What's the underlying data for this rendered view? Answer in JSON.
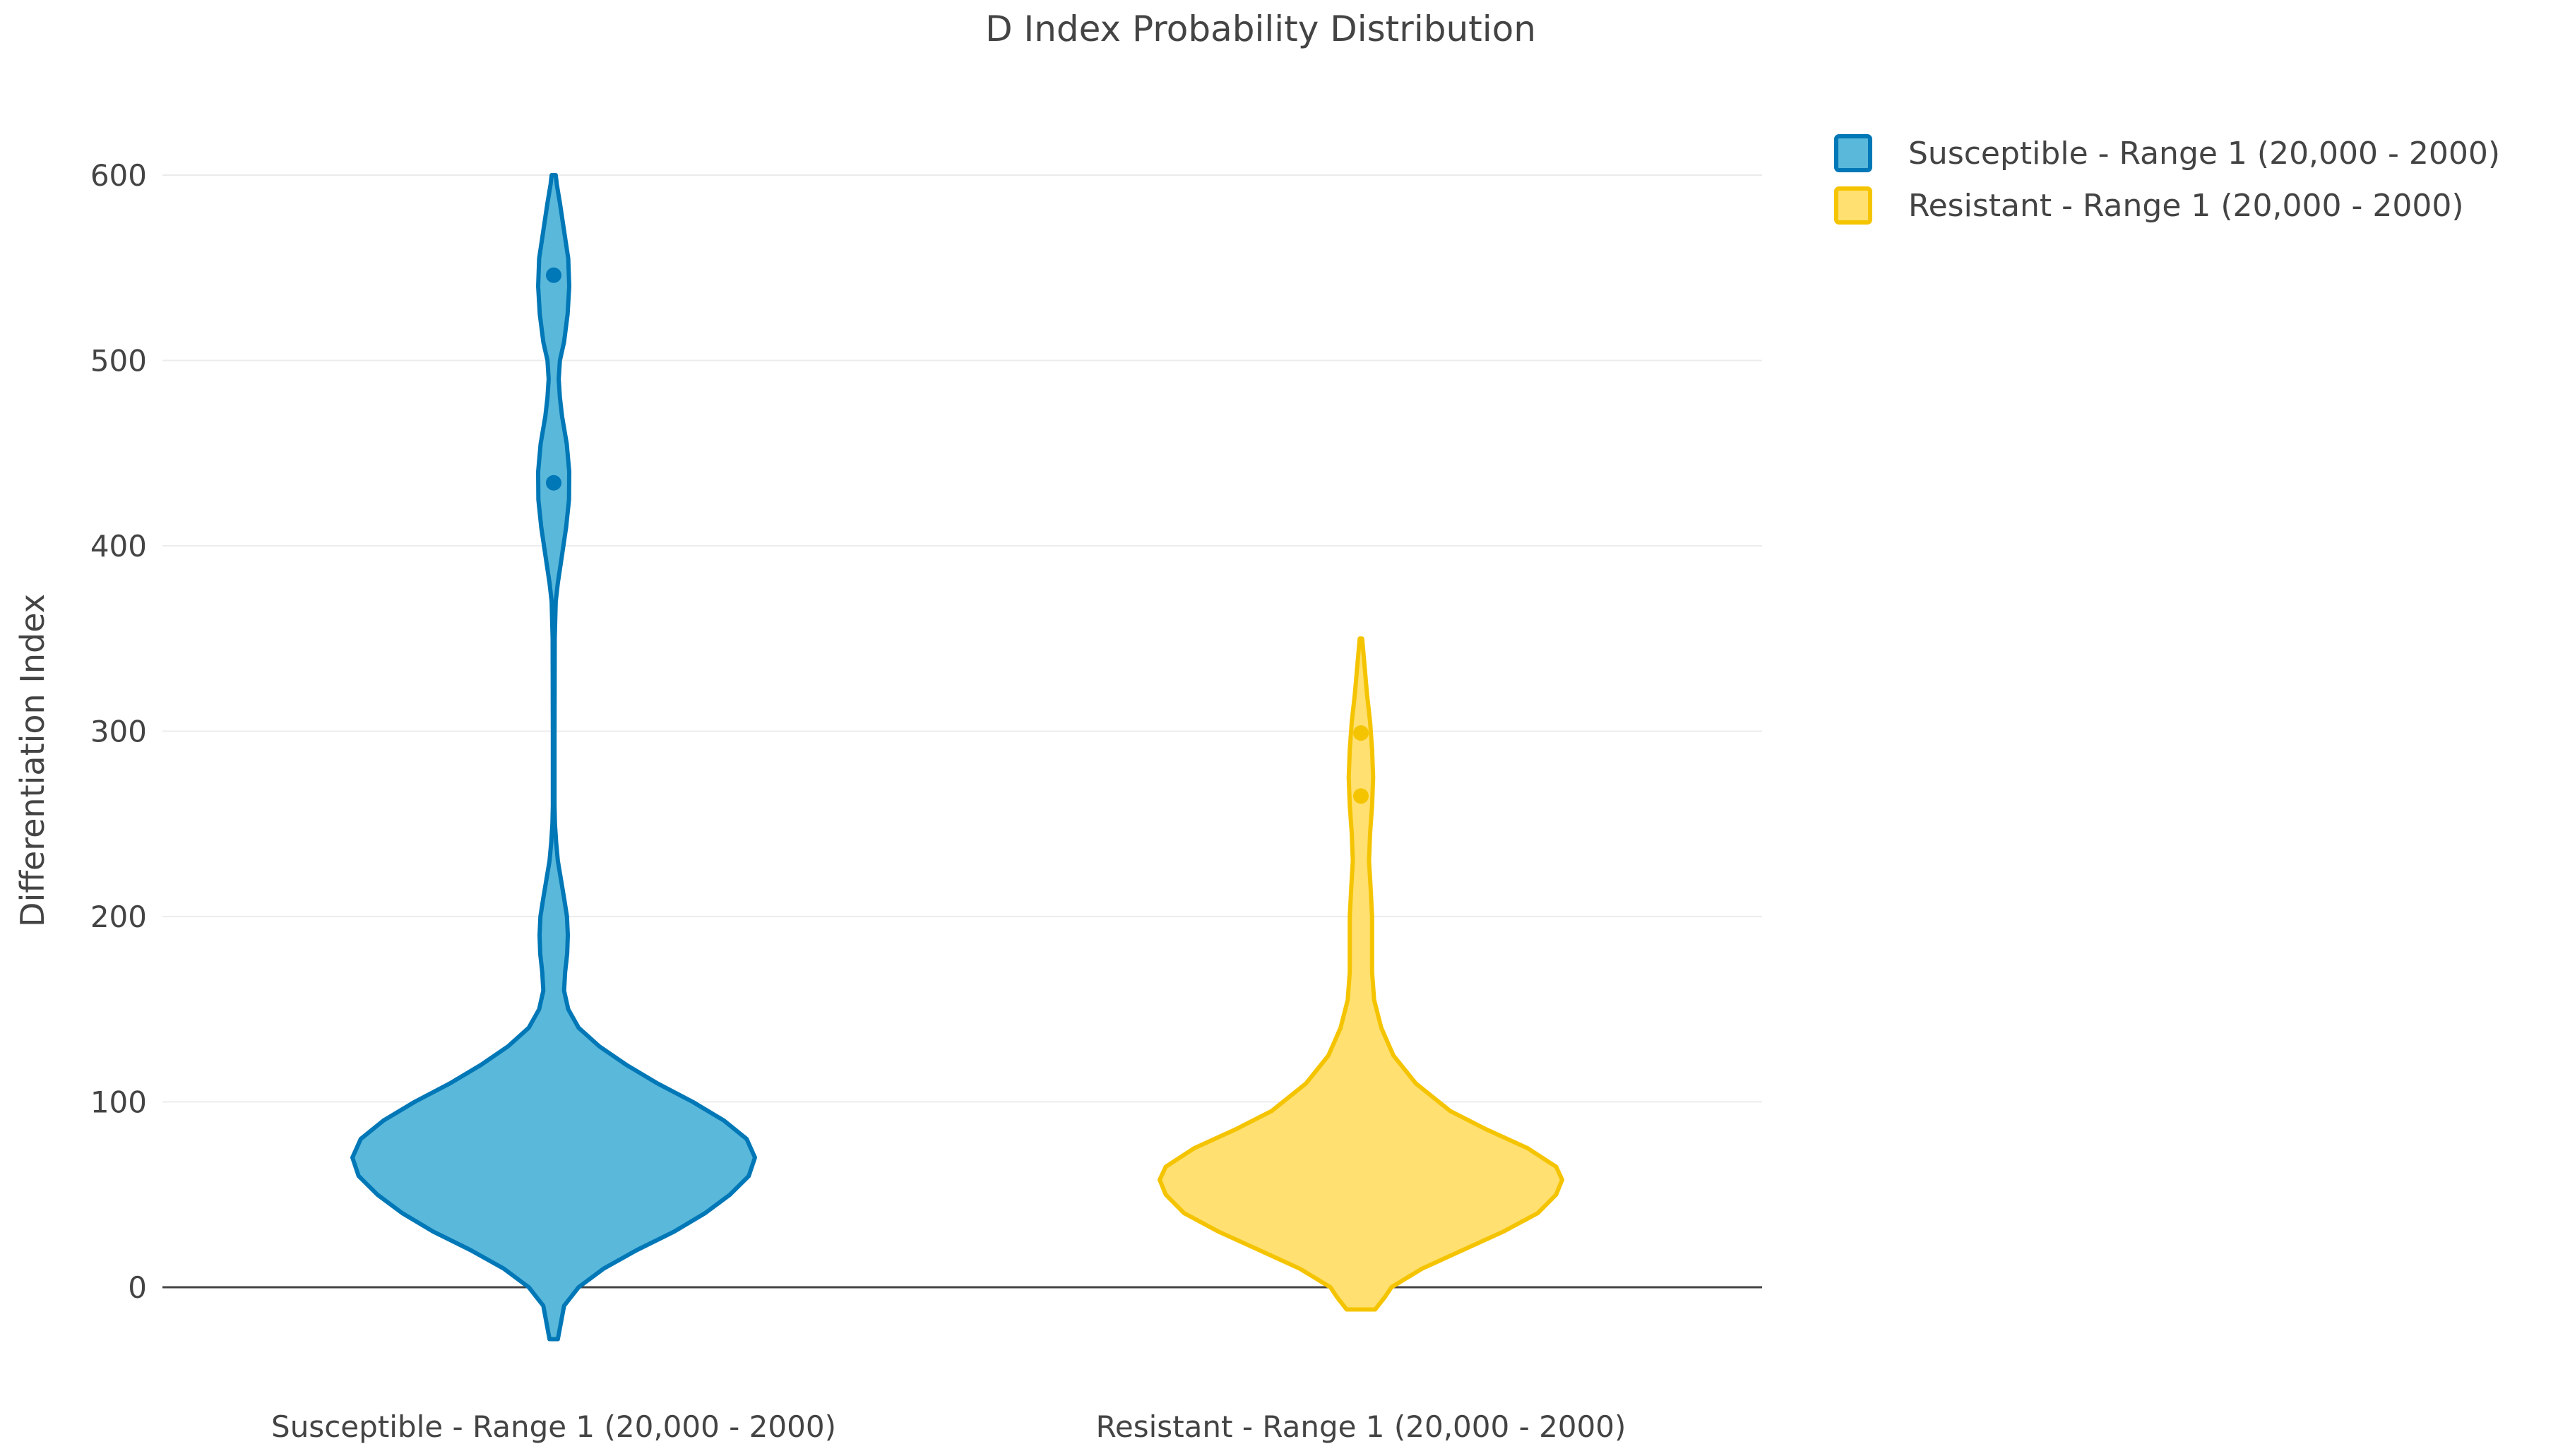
{
  "chart_data": {
    "type": "violin",
    "title": "D Index Probability Distribution",
    "xlabel": "",
    "ylabel": "Differentiation Index",
    "ylim": [
      -45,
      620
    ],
    "yticks": [
      0,
      100,
      200,
      300,
      400,
      500,
      600
    ],
    "ytick_labels": [
      "0",
      "100",
      "200",
      "300",
      "400",
      "500",
      "600"
    ],
    "grid": true,
    "legend_position": "top-right",
    "categories": [
      "Susceptible - Range 1 (20,000 - 2000)",
      "Resistant - Range 1 (20,000 - 2000)"
    ],
    "series": [
      {
        "name": "Susceptible - Range 1 (20,000 - 2000)",
        "category": "Susceptible - Range 1 (20,000 - 2000)",
        "fill_color": "#5ab8db",
        "line_color": "#0077b6",
        "range": [
          -28,
          600
        ],
        "points": [
          434,
          546
        ],
        "density": [
          [
            -28,
            0.02
          ],
          [
            -10,
            0.05
          ],
          [
            0,
            0.12
          ],
          [
            10,
            0.24
          ],
          [
            20,
            0.4
          ],
          [
            30,
            0.58
          ],
          [
            40,
            0.73
          ],
          [
            50,
            0.85
          ],
          [
            60,
            0.94
          ],
          [
            70,
            0.97
          ],
          [
            80,
            0.93
          ],
          [
            90,
            0.82
          ],
          [
            100,
            0.67
          ],
          [
            110,
            0.5
          ],
          [
            120,
            0.35
          ],
          [
            130,
            0.22
          ],
          [
            140,
            0.12
          ],
          [
            150,
            0.07
          ],
          [
            160,
            0.05
          ],
          [
            170,
            0.055
          ],
          [
            180,
            0.065
          ],
          [
            190,
            0.068
          ],
          [
            200,
            0.064
          ],
          [
            210,
            0.05
          ],
          [
            220,
            0.035
          ],
          [
            230,
            0.02
          ],
          [
            240,
            0.012
          ],
          [
            250,
            0.006
          ],
          [
            260,
            0.004
          ],
          [
            300,
            0.004
          ],
          [
            350,
            0.005
          ],
          [
            370,
            0.01
          ],
          [
            380,
            0.02
          ],
          [
            395,
            0.04
          ],
          [
            410,
            0.06
          ],
          [
            425,
            0.074
          ],
          [
            440,
            0.075
          ],
          [
            455,
            0.063
          ],
          [
            470,
            0.04
          ],
          [
            480,
            0.03
          ],
          [
            490,
            0.024
          ],
          [
            500,
            0.03
          ],
          [
            510,
            0.05
          ],
          [
            525,
            0.067
          ],
          [
            540,
            0.075
          ],
          [
            555,
            0.07
          ],
          [
            570,
            0.05
          ],
          [
            585,
            0.03
          ],
          [
            595,
            0.015
          ],
          [
            600,
            0.01
          ]
        ]
      },
      {
        "name": "Resistant - Range 1 (20,000 - 2000)",
        "category": "Resistant - Range 1 (20,000 - 2000)",
        "fill_color": "#ffe070",
        "line_color": "#f5c400",
        "range": [
          -12,
          350
        ],
        "points": [
          265,
          299
        ],
        "density": [
          [
            -12,
            0.07
          ],
          [
            -5,
            0.12
          ],
          [
            0,
            0.15
          ],
          [
            10,
            0.3
          ],
          [
            20,
            0.5
          ],
          [
            30,
            0.7
          ],
          [
            40,
            0.87
          ],
          [
            50,
            0.96
          ],
          [
            58,
            0.99
          ],
          [
            65,
            0.96
          ],
          [
            75,
            0.82
          ],
          [
            85,
            0.62
          ],
          [
            95,
            0.44
          ],
          [
            110,
            0.27
          ],
          [
            125,
            0.16
          ],
          [
            140,
            0.1
          ],
          [
            155,
            0.065
          ],
          [
            170,
            0.055
          ],
          [
            185,
            0.055
          ],
          [
            200,
            0.055
          ],
          [
            215,
            0.048
          ],
          [
            230,
            0.04
          ],
          [
            245,
            0.045
          ],
          [
            260,
            0.055
          ],
          [
            275,
            0.06
          ],
          [
            290,
            0.055
          ],
          [
            305,
            0.045
          ],
          [
            320,
            0.03
          ],
          [
            335,
            0.018
          ],
          [
            345,
            0.01
          ],
          [
            350,
            0.006
          ]
        ]
      }
    ]
  }
}
